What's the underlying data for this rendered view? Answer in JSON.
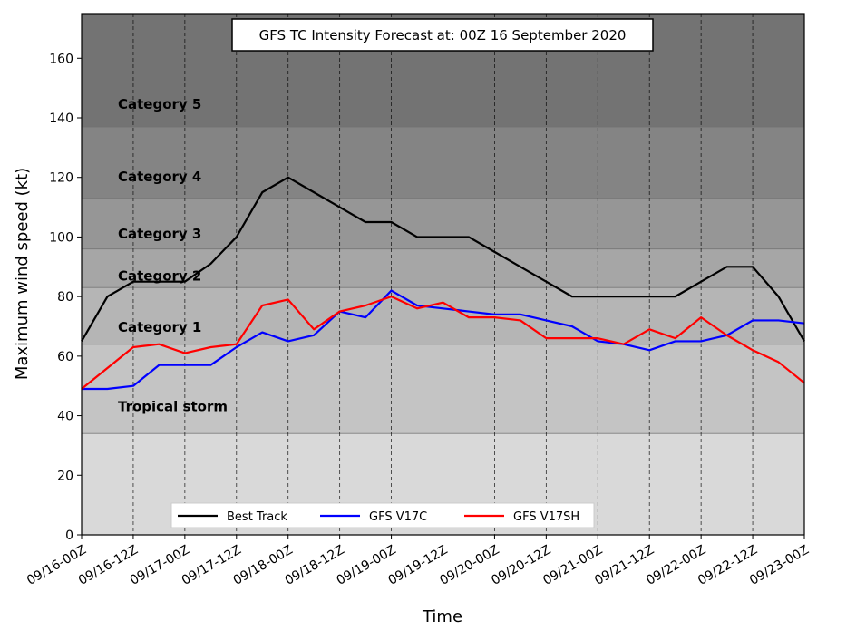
{
  "chart_data": {
    "type": "line",
    "title": "GFS TC Intensity Forecast at: 00Z 16 September 2020",
    "xlabel": "Time",
    "ylabel": "Maximum wind speed (kt)",
    "ylim": [
      0,
      175
    ],
    "yticks": [
      0,
      20,
      40,
      60,
      80,
      100,
      120,
      140,
      160
    ],
    "x_tick_labels": [
      "09/16-00Z",
      "09/16-12Z",
      "09/17-00Z",
      "09/17-12Z",
      "09/18-00Z",
      "09/18-12Z",
      "09/19-00Z",
      "09/19-12Z",
      "09/20-00Z",
      "09/20-12Z",
      "09/21-00Z",
      "09/21-12Z",
      "09/22-00Z",
      "09/22-12Z",
      "09/23-00Z"
    ],
    "grid": "vertical dashed at x ticks",
    "legend_position": "bottom-left",
    "x_hours": [
      0,
      6,
      12,
      18,
      24,
      30,
      36,
      42,
      48,
      54,
      60,
      66,
      72,
      78,
      84,
      90,
      96,
      102,
      108,
      114,
      120,
      126,
      132,
      138,
      144,
      150,
      156,
      162,
      168
    ],
    "series": [
      {
        "name": "Best Track",
        "color": "#000000",
        "values": [
          65,
          80,
          85,
          85,
          85,
          91,
          100,
          115,
          120,
          115,
          110,
          105,
          105,
          100,
          100,
          100,
          95,
          90,
          85,
          80,
          80,
          80,
          80,
          80,
          85,
          90,
          90,
          80,
          65
        ]
      },
      {
        "name": "GFS V17C",
        "color": "#0000ff",
        "values": [
          49,
          49,
          50,
          57,
          57,
          57,
          63,
          68,
          65,
          67,
          75,
          73,
          82,
          77,
          76,
          75,
          74,
          74,
          72,
          70,
          65,
          64,
          62,
          65,
          65,
          67,
          72,
          72,
          71
        ]
      },
      {
        "name": "GFS V17SH",
        "color": "#ff0000",
        "values": [
          49,
          56,
          63,
          64,
          61,
          63,
          64,
          77,
          79,
          69,
          75,
          77,
          80,
          76,
          78,
          73,
          73,
          72,
          66,
          66,
          66,
          64,
          69,
          66,
          73,
          67,
          62,
          58,
          51
        ]
      }
    ],
    "bands": [
      {
        "label": "",
        "from": 0,
        "to": 34,
        "color": "#d9d9d9"
      },
      {
        "label": "Tropical storm",
        "from": 34,
        "to": 64,
        "color": "#c4c4c4"
      },
      {
        "label": "Category 1",
        "from": 64,
        "to": 83,
        "color": "#b5b5b5"
      },
      {
        "label": "Category 2",
        "from": 83,
        "to": 96,
        "color": "#a6a6a6"
      },
      {
        "label": "Category 3",
        "from": 96,
        "to": 113,
        "color": "#969696"
      },
      {
        "label": "Category 4",
        "from": 113,
        "to": 137,
        "color": "#848484"
      },
      {
        "label": "Category 5",
        "from": 137,
        "to": 175,
        "color": "#737373"
      }
    ]
  }
}
